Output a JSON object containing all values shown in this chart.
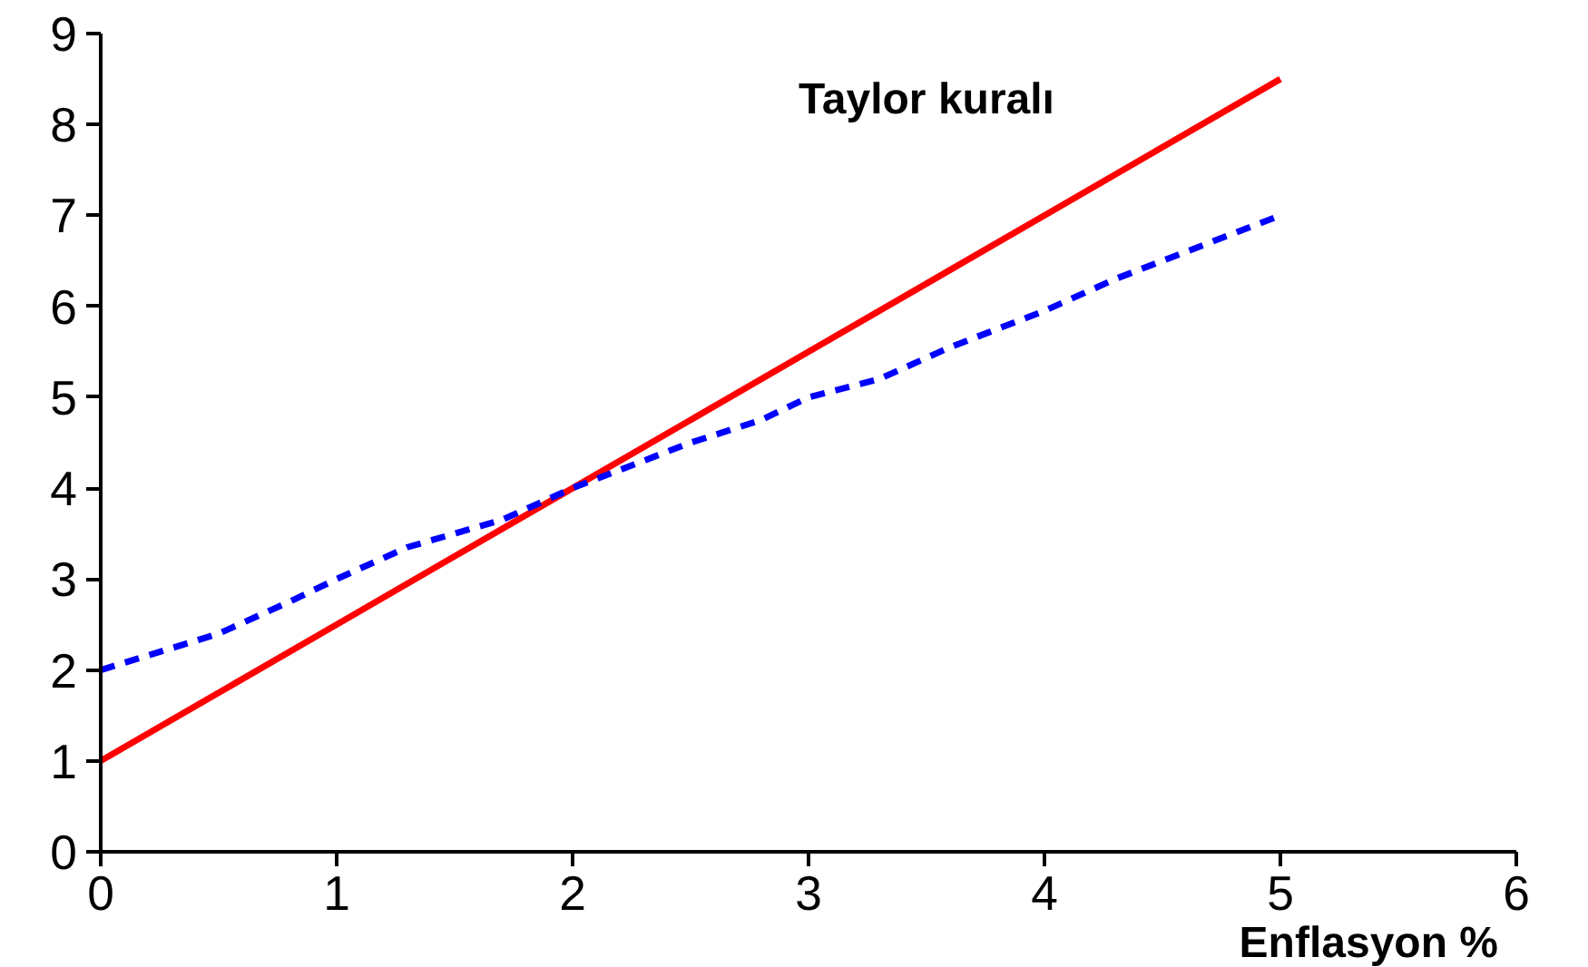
{
  "chart_data": {
    "type": "line",
    "xlabel": "Enflasyon %",
    "xlim": [
      0,
      6
    ],
    "ylim": [
      0,
      9
    ],
    "xticks": [
      0,
      1,
      2,
      3,
      4,
      5,
      6
    ],
    "yticks": [
      0,
      1,
      2,
      3,
      4,
      5,
      6,
      7,
      8,
      9
    ],
    "grid": false,
    "series": [
      {
        "name": "Taylor kuralı",
        "color": "#ff0000",
        "line_style": "solid",
        "x": [
          0,
          1,
          2,
          3,
          3.5,
          4,
          4.5,
          5
        ],
        "values": [
          1,
          2.5,
          4,
          5.5,
          6.25,
          7,
          7.75,
          8.5
        ]
      },
      {
        "color": "#0000ff",
        "line_style": "dashed",
        "x": [
          0,
          0.5,
          0.8,
          1,
          1.3,
          1.7,
          2,
          2.5,
          2.8,
          3,
          3.3,
          3.6,
          4,
          4.3,
          4.6,
          5
        ],
        "values": [
          2,
          2.4,
          2.75,
          3,
          3.35,
          3.65,
          4,
          4.5,
          4.75,
          5,
          5.2,
          5.55,
          5.95,
          6.3,
          6.6,
          7
        ]
      }
    ]
  }
}
